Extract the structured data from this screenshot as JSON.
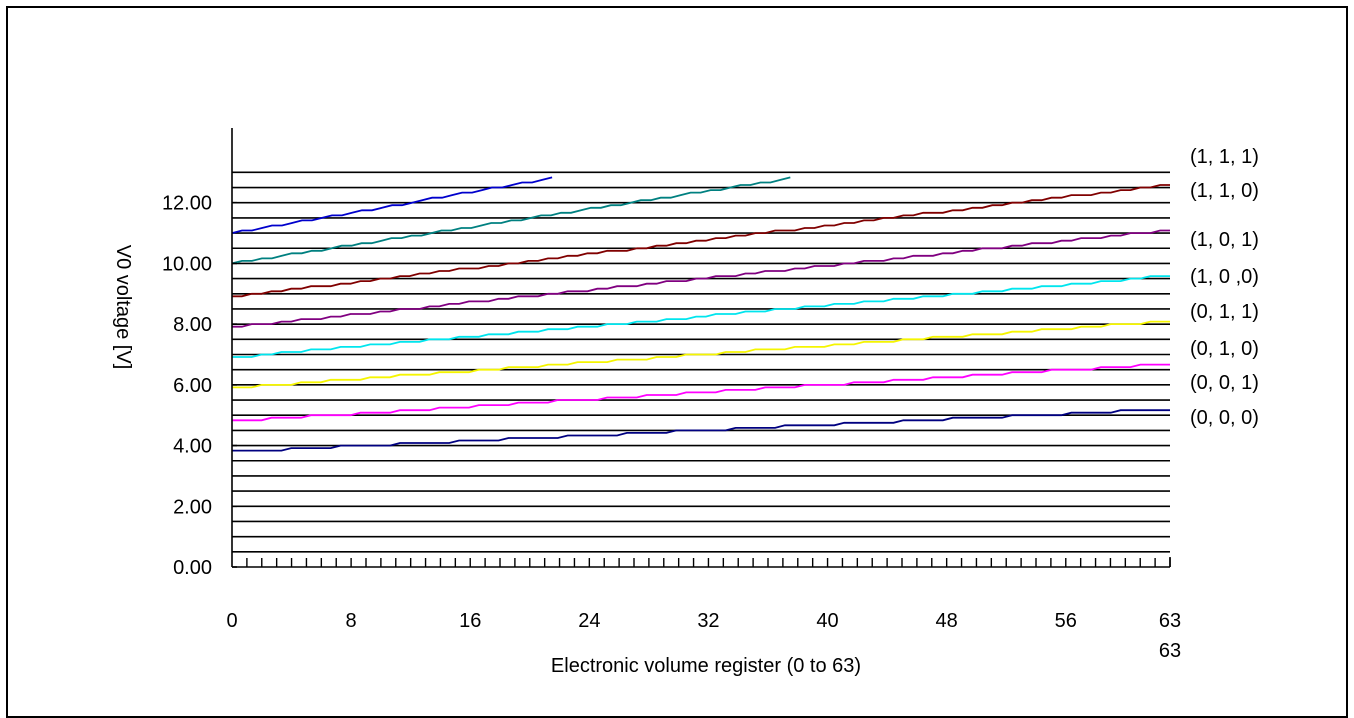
{
  "chart_data": {
    "type": "line",
    "xlabel": "Electronic volume register (0 to 63)",
    "ylabel": "V0 voltage [V]",
    "x_ticks": [
      "0",
      "8",
      "16",
      "24",
      "32",
      "40",
      "48",
      "56",
      "63"
    ],
    "x_extra_label": "63",
    "y_ticks": [
      "0.00",
      "2.00",
      "4.00",
      "6.00",
      "8.00",
      "10.00",
      "12.00"
    ],
    "xlim": [
      0,
      63
    ],
    "ylim": [
      0,
      14
    ],
    "grid": "horizontal",
    "series": [
      {
        "name": "(1, 1, 1)",
        "color": "#0000cc",
        "x": [
          0,
          21.5
        ],
        "y": [
          11.0,
          12.8
        ]
      },
      {
        "name": "(1, 1, 0)",
        "color": "#008080",
        "x": [
          0,
          37.5
        ],
        "y": [
          10.0,
          12.8
        ]
      },
      {
        "name": "(1, 0, 1)",
        "color": "#800000",
        "x": [
          0,
          63
        ],
        "y": [
          8.9,
          12.6
        ]
      },
      {
        "name": "(1, 0 ,0)",
        "color": "#800080",
        "x": [
          0,
          63
        ],
        "y": [
          7.9,
          11.1
        ]
      },
      {
        "name": "(0, 1, 1)",
        "color": "#00e5ee",
        "x": [
          0,
          63
        ],
        "y": [
          6.9,
          9.6
        ]
      },
      {
        "name": "(0, 1, 0)",
        "color": "#f5f500",
        "x": [
          0,
          63
        ],
        "y": [
          5.9,
          8.1
        ]
      },
      {
        "name": "(0, 0, 1)",
        "color": "#ff00ff",
        "x": [
          0,
          63
        ],
        "y": [
          4.8,
          6.7
        ]
      },
      {
        "name": "(0, 0, 0)",
        "color": "#000080",
        "x": [
          0,
          63
        ],
        "y": [
          3.8,
          5.2
        ]
      }
    ]
  }
}
